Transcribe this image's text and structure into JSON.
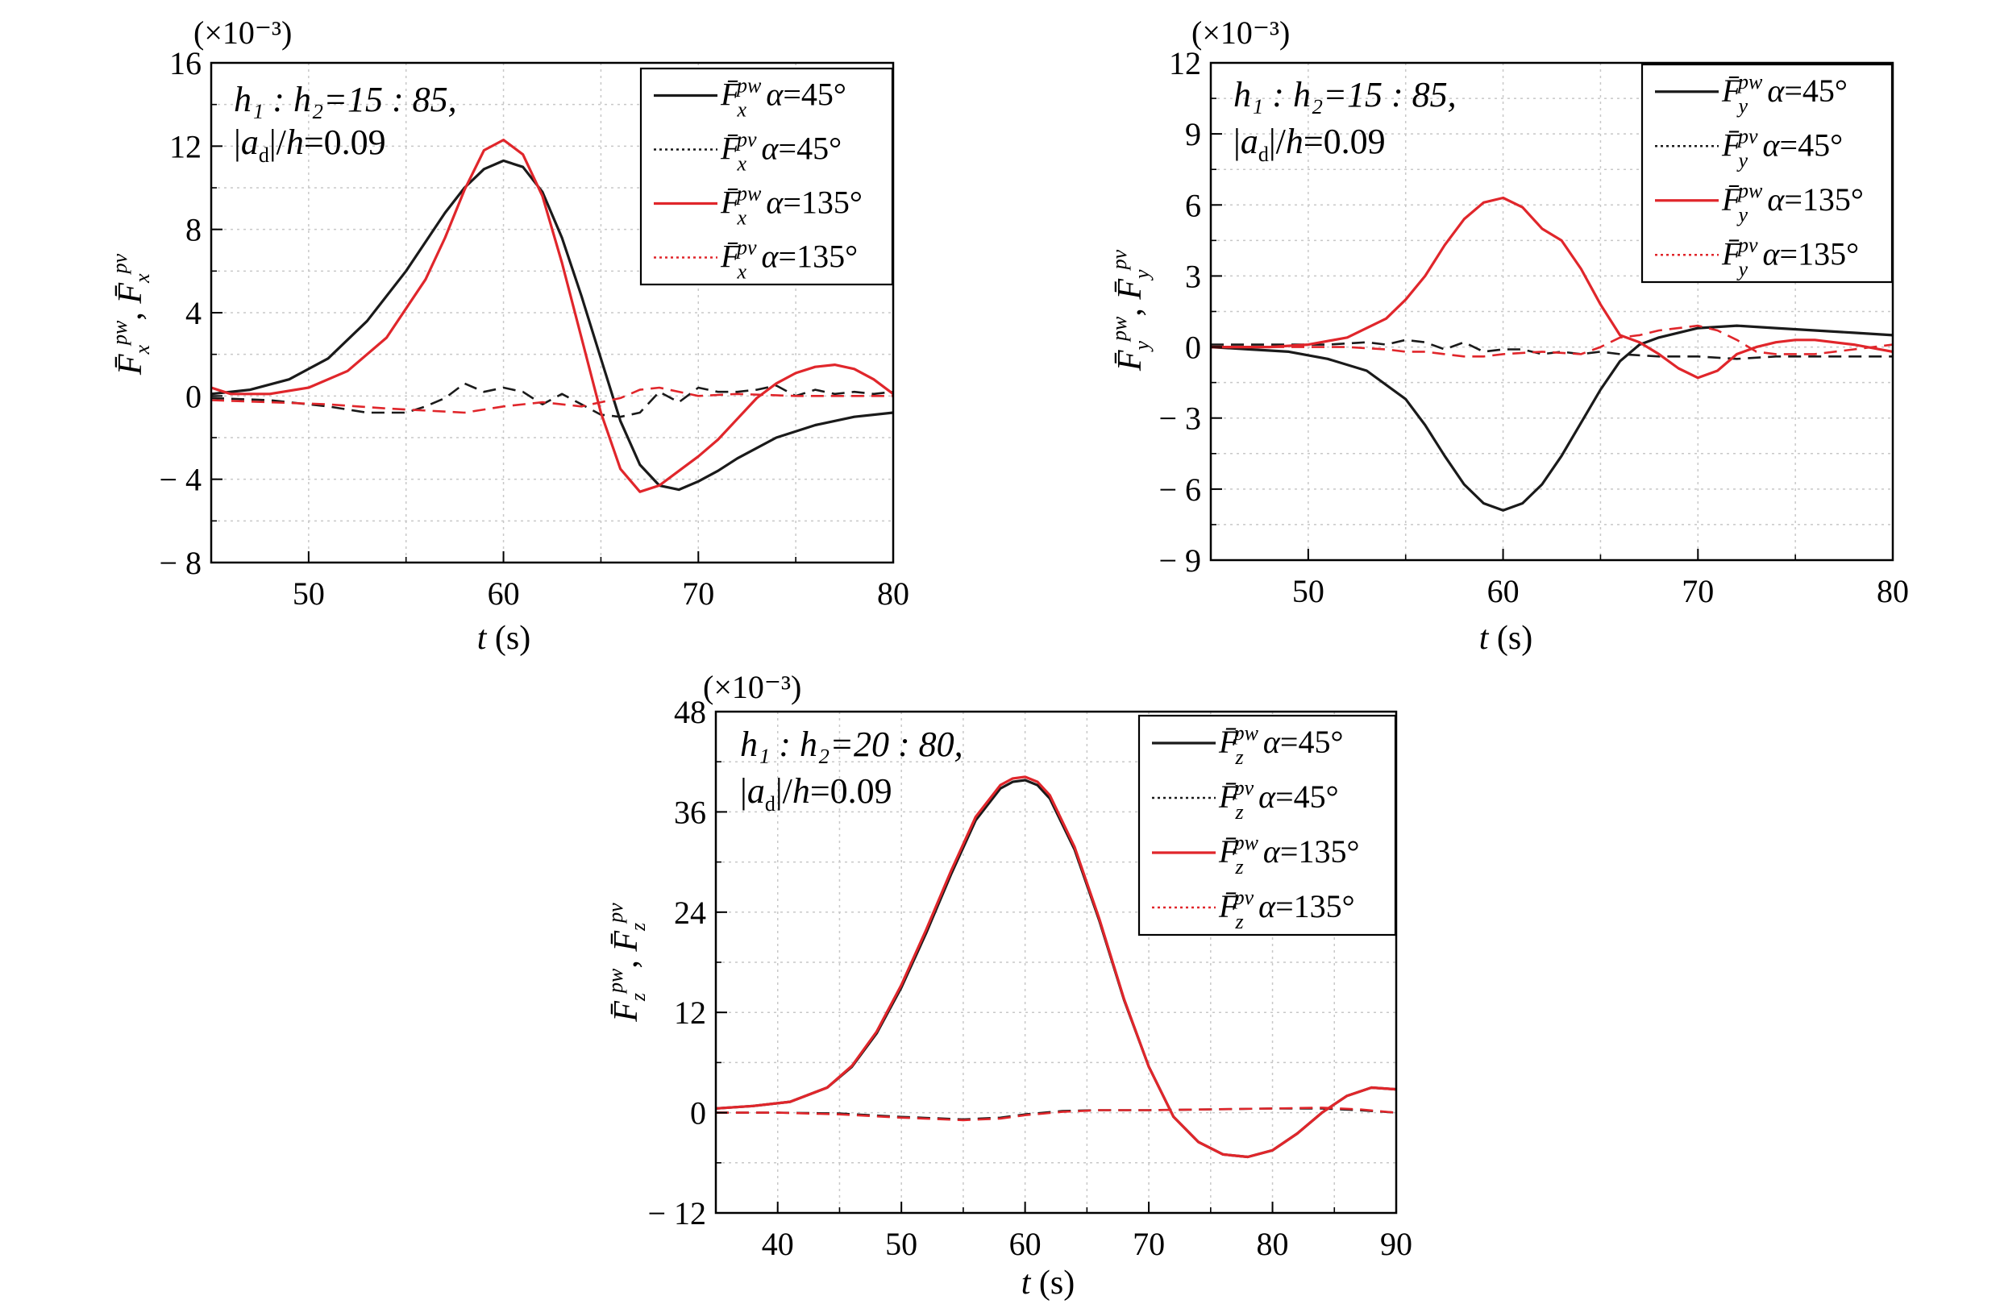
{
  "chart_data": [
    {
      "type": "line",
      "id": "fx",
      "exponent_label": "(×10⁻³)",
      "annotation": [
        "h₁ : h₂=15 : 85,",
        "|a_d|/h=0.09"
      ],
      "xlabel": "t (s)",
      "ylabel": "F̄x^pw, F̄x^pv",
      "xlim": [
        45,
        80
      ],
      "ylim": [
        -8,
        16
      ],
      "xticks": [
        50,
        60,
        70,
        80
      ],
      "yticks": [
        -8,
        -4,
        0,
        4,
        8,
        12,
        16
      ],
      "ytick_labels": [
        "− 8",
        "− 4",
        "0",
        "4",
        "8",
        "12",
        "16"
      ],
      "grid": true,
      "legend_position": "top-right",
      "legend_entries": [
        {
          "symbol": "F̄",
          "sub": "x",
          "sup": "pw",
          "text": "α=45°",
          "color": "#1a1a1a",
          "dash": "solid"
        },
        {
          "symbol": "F̄",
          "sub": "x",
          "sup": "pv",
          "text": "α=45°",
          "color": "#1a1a1a",
          "dash": "dotted"
        },
        {
          "symbol": "F̄",
          "sub": "x",
          "sup": "pw",
          "text": "α=135°",
          "color": "#e0262b",
          "dash": "solid"
        },
        {
          "symbol": "F̄",
          "sub": "x",
          "sup": "pv",
          "text": "α=135°",
          "color": "#e0262b",
          "dash": "dotted"
        }
      ],
      "series": [
        {
          "color": "#1a1a1a",
          "dash": "solid",
          "x": [
            45,
            47,
            49,
            51,
            53,
            55,
            57,
            58,
            59,
            60,
            61,
            62,
            63,
            64,
            65,
            66,
            67,
            68,
            69,
            70,
            71,
            72,
            74,
            76,
            78,
            80
          ],
          "y": [
            0.1,
            0.3,
            0.8,
            1.8,
            3.6,
            6.0,
            8.8,
            10.0,
            10.9,
            11.3,
            11.0,
            9.8,
            7.6,
            4.8,
            1.8,
            -1.2,
            -3.3,
            -4.3,
            -4.5,
            -4.1,
            -3.6,
            -3.0,
            -2.0,
            -1.4,
            -1.0,
            -0.8
          ]
        },
        {
          "color": "#1a1a1a",
          "dash": "dashed",
          "x": [
            45,
            48,
            51,
            53,
            55,
            56,
            57,
            58,
            59,
            60,
            61,
            62,
            63,
            64,
            65,
            66,
            67,
            68,
            69,
            70,
            71,
            72,
            73,
            74,
            75,
            76,
            77,
            78,
            79,
            80
          ],
          "y": [
            -0.1,
            -0.2,
            -0.5,
            -0.8,
            -0.8,
            -0.5,
            -0.1,
            0.6,
            0.2,
            0.4,
            0.2,
            -0.4,
            0.1,
            -0.4,
            -0.9,
            -1.0,
            -0.8,
            0.2,
            -0.3,
            0.4,
            0.2,
            0.2,
            0.3,
            0.5,
            0.0,
            0.3,
            0.1,
            0.2,
            0.1,
            0.2
          ]
        },
        {
          "color": "#e0262b",
          "dash": "solid",
          "x": [
            45,
            46,
            48,
            50,
            52,
            54,
            56,
            57,
            58,
            59,
            60,
            61,
            62,
            63,
            64,
            65,
            66,
            67,
            68,
            69,
            70,
            71,
            72,
            73,
            74,
            75,
            76,
            77,
            78,
            79,
            80
          ],
          "y": [
            0.4,
            0.1,
            0.1,
            0.4,
            1.2,
            2.8,
            5.6,
            7.6,
            9.9,
            11.8,
            12.3,
            11.6,
            9.6,
            6.4,
            2.8,
            -0.8,
            -3.5,
            -4.6,
            -4.3,
            -3.6,
            -2.9,
            -2.1,
            -1.1,
            -0.1,
            0.6,
            1.1,
            1.4,
            1.5,
            1.3,
            0.8,
            0.1
          ]
        },
        {
          "color": "#e0262b",
          "dash": "dashed",
          "x": [
            45,
            48,
            51,
            54,
            56,
            58,
            60,
            62,
            64,
            65,
            66,
            67,
            68,
            70,
            72,
            75,
            78,
            80
          ],
          "y": [
            -0.2,
            -0.3,
            -0.4,
            -0.6,
            -0.7,
            -0.8,
            -0.5,
            -0.3,
            -0.5,
            -0.3,
            -0.1,
            0.3,
            0.4,
            0.0,
            0.1,
            0.0,
            0.0,
            0.0
          ]
        }
      ]
    },
    {
      "type": "line",
      "id": "fy",
      "exponent_label": "(×10⁻³)",
      "annotation": [
        "h₁ : h₂=15 : 85,",
        "|a_d|/h=0.09"
      ],
      "xlabel": "t (s)",
      "ylabel": "F̄y^pw, F̄y^pv",
      "xlim": [
        45,
        80
      ],
      "ylim": [
        -9,
        12
      ],
      "xticks": [
        50,
        60,
        70,
        80
      ],
      "yticks": [
        -9,
        -6,
        -3,
        0,
        3,
        6,
        9,
        12
      ],
      "ytick_labels": [
        "− 9",
        "− 6",
        "− 3",
        "0",
        "3",
        "6",
        "9",
        "12"
      ],
      "grid": true,
      "legend_position": "top-right",
      "legend_entries": [
        {
          "symbol": "F̄",
          "sub": "y",
          "sup": "pw",
          "text": "α=45°",
          "color": "#1a1a1a",
          "dash": "solid"
        },
        {
          "symbol": "F̄",
          "sub": "y",
          "sup": "pv",
          "text": "α=45°",
          "color": "#1a1a1a",
          "dash": "dotted"
        },
        {
          "symbol": "F̄",
          "sub": "y",
          "sup": "pw",
          "text": "α=135°",
          "color": "#e0262b",
          "dash": "solid"
        },
        {
          "symbol": "F̄",
          "sub": "y",
          "sup": "pv",
          "text": "α=135°",
          "color": "#e0262b",
          "dash": "dotted"
        }
      ],
      "series": [
        {
          "color": "#1a1a1a",
          "dash": "solid",
          "x": [
            45,
            47,
            49,
            51,
            53,
            55,
            56,
            57,
            58,
            59,
            60,
            61,
            62,
            63,
            64,
            65,
            66,
            67,
            68,
            69,
            70,
            72,
            74,
            76,
            78,
            80
          ],
          "y": [
            0.0,
            -0.1,
            -0.2,
            -0.5,
            -1.0,
            -2.2,
            -3.3,
            -4.6,
            -5.8,
            -6.6,
            -6.9,
            -6.6,
            -5.8,
            -4.6,
            -3.2,
            -1.8,
            -0.6,
            0.1,
            0.4,
            0.6,
            0.8,
            0.9,
            0.8,
            0.7,
            0.6,
            0.5
          ]
        },
        {
          "color": "#1a1a1a",
          "dash": "dashed",
          "x": [
            45,
            48,
            51,
            53,
            54,
            55,
            56,
            57,
            58,
            59,
            60,
            61,
            62,
            63,
            64,
            65,
            66,
            68,
            70,
            72,
            74,
            76,
            78,
            80
          ],
          "y": [
            0.1,
            0.1,
            0.1,
            0.2,
            0.1,
            0.3,
            0.2,
            -0.1,
            0.2,
            -0.2,
            -0.1,
            -0.1,
            -0.3,
            -0.2,
            -0.3,
            -0.2,
            -0.3,
            -0.4,
            -0.4,
            -0.5,
            -0.4,
            -0.4,
            -0.4,
            -0.4
          ]
        },
        {
          "color": "#e0262b",
          "dash": "solid",
          "x": [
            45,
            48,
            50,
            52,
            54,
            55,
            56,
            57,
            58,
            59,
            60,
            61,
            62,
            63,
            64,
            65,
            66,
            67,
            68,
            69,
            70,
            71,
            72,
            73,
            74,
            75,
            76,
            78,
            80
          ],
          "y": [
            0.0,
            0.0,
            0.1,
            0.4,
            1.2,
            2.0,
            3.0,
            4.3,
            5.4,
            6.1,
            6.3,
            5.9,
            5.0,
            4.5,
            3.3,
            1.8,
            0.5,
            0.2,
            -0.3,
            -0.9,
            -1.3,
            -1.0,
            -0.3,
            0.0,
            0.2,
            0.3,
            0.3,
            0.1,
            -0.2
          ]
        },
        {
          "color": "#e0262b",
          "dash": "dashed",
          "x": [
            45,
            48,
            50,
            52,
            54,
            55,
            56,
            57,
            58,
            59,
            60,
            62,
            64,
            65,
            66,
            67,
            68,
            69,
            70,
            71,
            72,
            73,
            74,
            76,
            78,
            80
          ],
          "y": [
            0.0,
            0.0,
            0.0,
            0.0,
            -0.1,
            -0.2,
            -0.2,
            -0.3,
            -0.4,
            -0.4,
            -0.3,
            -0.2,
            -0.3,
            0.0,
            0.4,
            0.5,
            0.7,
            0.8,
            0.9,
            0.7,
            0.3,
            -0.2,
            -0.3,
            -0.3,
            -0.1,
            0.1
          ]
        }
      ]
    },
    {
      "type": "line",
      "id": "fz",
      "exponent_label": "(×10⁻³)",
      "annotation": [
        "h₁ : h₂=20 : 80,",
        "|a_d|/h=0.09"
      ],
      "xlabel": "t (s)",
      "ylabel": "F̄z^pw, F̄z^pv",
      "xlim": [
        35,
        90
      ],
      "ylim": [
        -12,
        48
      ],
      "xticks": [
        40,
        50,
        60,
        70,
        80,
        90
      ],
      "yticks": [
        -12,
        0,
        12,
        24,
        36,
        48
      ],
      "ytick_labels": [
        "− 12",
        "0",
        "12",
        "24",
        "36",
        "48"
      ],
      "grid": true,
      "legend_position": "top-right",
      "legend_entries": [
        {
          "symbol": "F̄",
          "sub": "z",
          "sup": "pw",
          "text": "α=45°",
          "color": "#1a1a1a",
          "dash": "solid"
        },
        {
          "symbol": "F̄",
          "sub": "z",
          "sup": "pv",
          "text": "α=45°",
          "color": "#1a1a1a",
          "dash": "dotted"
        },
        {
          "symbol": "F̄",
          "sub": "z",
          "sup": "pw",
          "text": "α=135°",
          "color": "#e0262b",
          "dash": "solid"
        },
        {
          "symbol": "F̄",
          "sub": "z",
          "sup": "pv",
          "text": "α=135°",
          "color": "#e0262b",
          "dash": "dotted"
        }
      ],
      "series": [
        {
          "color": "#1a1a1a",
          "dash": "solid",
          "x": [
            35,
            38,
            41,
            44,
            46,
            48,
            50,
            52,
            54,
            56,
            58,
            59,
            60,
            61,
            62,
            64,
            66,
            68,
            70,
            72,
            74,
            76,
            78,
            80,
            82,
            84,
            86,
            88,
            90
          ],
          "y": [
            0.5,
            0.8,
            1.3,
            3.0,
            5.5,
            9.5,
            15.0,
            21.5,
            28.5,
            35.0,
            38.8,
            39.6,
            39.8,
            39.2,
            37.6,
            31.5,
            23.0,
            13.5,
            5.5,
            -0.5,
            -3.5,
            -5.0,
            -5.3,
            -4.5,
            -2.5,
            0.0,
            2.0,
            3.0,
            2.8
          ]
        },
        {
          "color": "#1a1a1a",
          "dash": "dashed",
          "x": [
            35,
            40,
            45,
            50,
            55,
            58,
            60,
            63,
            66,
            70,
            75,
            80,
            84,
            87,
            90
          ],
          "y": [
            0.0,
            0.0,
            -0.1,
            -0.5,
            -0.8,
            -0.6,
            -0.2,
            0.2,
            0.3,
            0.3,
            0.4,
            0.5,
            0.5,
            0.3,
            0.0
          ]
        },
        {
          "color": "#e0262b",
          "dash": "solid",
          "x": [
            35,
            38,
            41,
            44,
            46,
            48,
            50,
            52,
            54,
            56,
            58,
            59,
            60,
            61,
            62,
            64,
            66,
            68,
            70,
            72,
            74,
            76,
            78,
            80,
            82,
            84,
            86,
            88,
            90
          ],
          "y": [
            0.5,
            0.8,
            1.3,
            3.0,
            5.6,
            9.7,
            15.3,
            21.9,
            28.9,
            35.4,
            39.2,
            40.0,
            40.2,
            39.6,
            38.0,
            31.8,
            23.2,
            13.6,
            5.5,
            -0.5,
            -3.5,
            -5.0,
            -5.3,
            -4.5,
            -2.5,
            0.0,
            2.0,
            3.0,
            2.8
          ]
        },
        {
          "color": "#e0262b",
          "dash": "dashed",
          "x": [
            35,
            40,
            45,
            50,
            55,
            58,
            60,
            63,
            66,
            70,
            75,
            80,
            84,
            87,
            90
          ],
          "y": [
            0.0,
            0.0,
            -0.2,
            -0.6,
            -0.9,
            -0.7,
            -0.3,
            0.1,
            0.3,
            0.3,
            0.4,
            0.5,
            0.6,
            0.4,
            0.0
          ]
        }
      ]
    }
  ]
}
